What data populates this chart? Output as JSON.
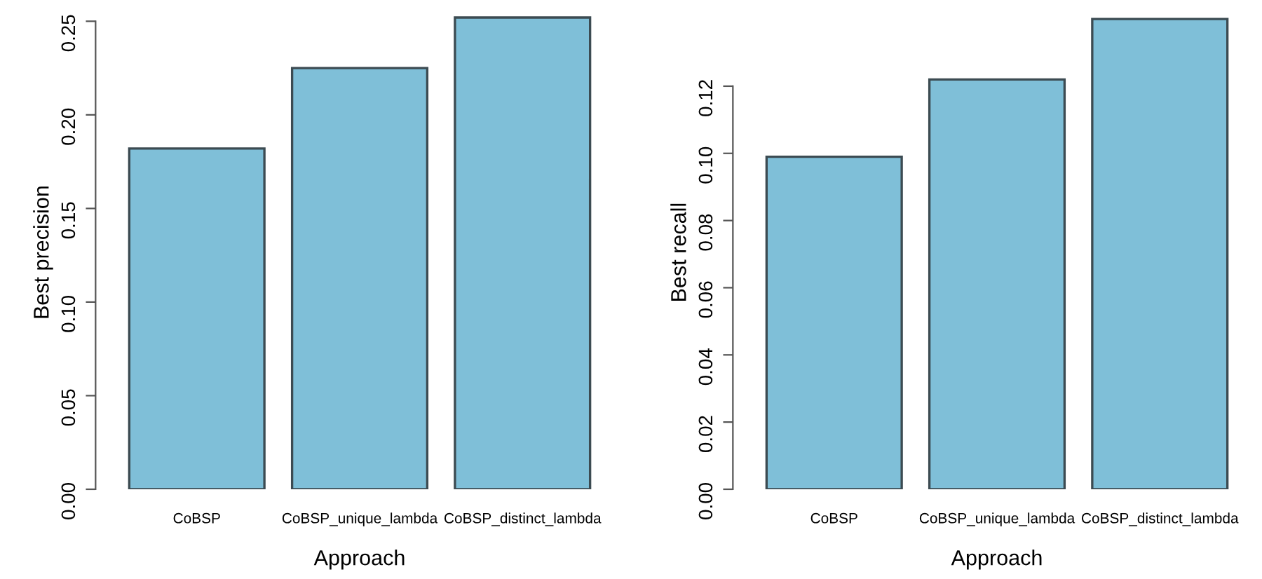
{
  "chart_data": [
    {
      "type": "bar",
      "categories": [
        "CoBSP",
        "CoBSP_unique_lambda",
        "CoBSP_distinct_lambda"
      ],
      "xlabel": "Approach",
      "ylabel": "Best precision",
      "color": "#7fbfd8",
      "values": [
        0.182,
        0.225,
        0.252
      ],
      "ylim": [
        0,
        0.253
      ],
      "yticks": [
        {
          "value": 0,
          "label": "0.00"
        },
        {
          "value": 0.05,
          "label": "0.05"
        },
        {
          "value": 0.1,
          "label": "0.10"
        },
        {
          "value": 0.15,
          "label": "0.15"
        },
        {
          "value": 0.2,
          "label": "0.20"
        },
        {
          "value": 0.25,
          "label": "0.25"
        }
      ]
    },
    {
      "type": "bar",
      "categories": [
        "CoBSP",
        "CoBSP_unique_lambda",
        "CoBSP_distinct_lambda"
      ],
      "xlabel": "Approach",
      "ylabel": "Best recall",
      "color": "#7fbfd8",
      "values": [
        0.099,
        0.122,
        0.14
      ],
      "ylim": [
        0,
        0.141
      ],
      "yticks": [
        {
          "value": 0,
          "label": "0.00"
        },
        {
          "value": 0.02,
          "label": "0.02"
        },
        {
          "value": 0.04,
          "label": "0.04"
        },
        {
          "value": 0.06,
          "label": "0.06"
        },
        {
          "value": 0.08,
          "label": "0.08"
        },
        {
          "value": 0.1,
          "label": "0.10"
        },
        {
          "value": 0.12,
          "label": "0.12"
        }
      ]
    }
  ]
}
